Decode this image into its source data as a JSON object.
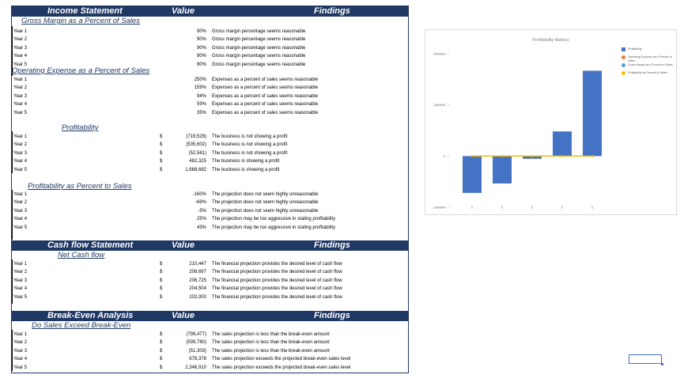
{
  "headers": {
    "income": {
      "c1": "Income Statement",
      "c2": "Value",
      "c3": "Findings"
    },
    "cashflow": {
      "c1": "Cash flow Statement",
      "c2": "Value",
      "c3": "Findings"
    },
    "breakeven": {
      "c1": "Break-Even Analysis",
      "c2": "Value",
      "c3": "Findings"
    }
  },
  "sections": {
    "gross_margin": {
      "title": "Gross Margin as a Percent of Sales",
      "rows": [
        {
          "label": "Year 1",
          "cur": "",
          "value": "90%",
          "finding": "Gross margin percentage seems reasonable"
        },
        {
          "label": "Year 2",
          "cur": "",
          "value": "90%",
          "finding": "Gross margin percentage seems reasonable"
        },
        {
          "label": "Year 3",
          "cur": "",
          "value": "90%",
          "finding": "Gross margin percentage seems reasonable"
        },
        {
          "label": "Year 4",
          "cur": "",
          "value": "90%",
          "finding": "Gross margin percentage seems reasonable"
        },
        {
          "label": "Year 5",
          "cur": "",
          "value": "90%",
          "finding": "Gross margin percentage seems reasonable"
        }
      ]
    },
    "opex": {
      "title": "Operating Expense as a Percent of Sales",
      "rows": [
        {
          "label": "Year 1",
          "cur": "",
          "value": "250%",
          "finding": "Expenses as a percent of sales seems reasonable"
        },
        {
          "label": "Year 2",
          "cur": "",
          "value": "159%",
          "finding": "Expenses as a percent of sales seems reasonable"
        },
        {
          "label": "Year 3",
          "cur": "",
          "value": "94%",
          "finding": "Expenses as a percent of sales seems reasonable"
        },
        {
          "label": "Year 4",
          "cur": "",
          "value": "59%",
          "finding": "Expenses as a percent of sales seems reasonable"
        },
        {
          "label": "Year 5",
          "cur": "",
          "value": "35%",
          "finding": "Expenses as a percent of sales seems reasonable"
        }
      ]
    },
    "profitability": {
      "title": "Profitability",
      "rows": [
        {
          "label": "Year 1",
          "cur": "$",
          "value": "(719,529)",
          "finding": "The business is not showing a profit"
        },
        {
          "label": "Year 2",
          "cur": "$",
          "value": "(535,602)",
          "finding": "The business is not showing a profit"
        },
        {
          "label": "Year 3",
          "cur": "$",
          "value": "(52,581)",
          "finding": "The business is not showing a profit"
        },
        {
          "label": "Year 4",
          "cur": "$",
          "value": "482,325",
          "finding": "The business is showing a profit"
        },
        {
          "label": "Year 5",
          "cur": "$",
          "value": "1,668,682",
          "finding": "The business is showing a profit"
        }
      ]
    },
    "profit_pct": {
      "title": "Profitability as Percent to Sales",
      "rows": [
        {
          "label": "Year 1",
          "cur": "",
          "value": "-160%",
          "finding": "The projection does not seem highly unreasonable"
        },
        {
          "label": "Year 2",
          "cur": "",
          "value": "-69%",
          "finding": "The projection does not seem highly unreasonable"
        },
        {
          "label": "Year 3",
          "cur": "",
          "value": "-5%",
          "finding": "The projection does not seem highly unreasonable"
        },
        {
          "label": "Year 4",
          "cur": "",
          "value": "25%",
          "finding": "The projection may be too aggressive in stating profitability"
        },
        {
          "label": "Year 5",
          "cur": "",
          "value": "43%",
          "finding": "The projection may be too aggressive in stating profitability"
        }
      ]
    },
    "net_cash": {
      "title": "Net Cash flow",
      "rows": [
        {
          "label": "Year 1",
          "cur": "$",
          "value": "210,447",
          "finding": "The financial projection provides the desired level of cash flow"
        },
        {
          "label": "Year 2",
          "cur": "$",
          "value": "208,697",
          "finding": "The financial projection provides the desired level of cash flow"
        },
        {
          "label": "Year 3",
          "cur": "$",
          "value": "206,725",
          "finding": "The financial projection provides the desired level of cash flow"
        },
        {
          "label": "Year 4",
          "cur": "$",
          "value": "204,504",
          "finding": "The financial projection provides the desired level of cash flow"
        },
        {
          "label": "Year 5",
          "cur": "$",
          "value": "202,000",
          "finding": "The financial projection provides the desired level of cash flow"
        }
      ]
    },
    "break_even": {
      "title": "Do Sales Exceed Break-Even",
      "rows": [
        {
          "label": "Year 1",
          "cur": "$",
          "value": "(799,477)",
          "finding": "The sales projection is less than the break-even amount"
        },
        {
          "label": "Year 2",
          "cur": "$",
          "value": "(599,780)",
          "finding": "The sales projection is less than the break-even amount"
        },
        {
          "label": "Year 3",
          "cur": "$",
          "value": "(51,303)",
          "finding": "The sales projection is less than the break-even amount"
        },
        {
          "label": "Year 4",
          "cur": "$",
          "value": "678,378",
          "finding": "The sales projection exceeds the projected break-even sales level"
        },
        {
          "label": "Year 5",
          "cur": "$",
          "value": "2,346,910",
          "finding": "The sales projection exceeds the projected break-even sales level"
        }
      ]
    }
  },
  "chart_data": {
    "type": "bar",
    "title": "Profitability Matrics",
    "categories": [
      "",
      "",
      "",
      "",
      ""
    ],
    "ylim": [
      -1000000,
      2000000
    ],
    "yticks": [
      2000000,
      1000000,
      0,
      -1000000
    ],
    "ytick_labels": [
      "2000000",
      "1000000",
      "0",
      "-1000000"
    ],
    "legend_position": "right",
    "series": [
      {
        "name": "Profitability",
        "type": "bar",
        "color": "#4472c4",
        "values": [
          -719529,
          -535602,
          -52581,
          482325,
          1668682
        ]
      },
      {
        "name": "Operating Expense as a Percent of Sales",
        "type": "line",
        "color": "#ed7d31",
        "values": [
          2.5,
          1.59,
          0.94,
          0.59,
          0.35
        ]
      },
      {
        "name": "Gross Margin as a Percent of Sales",
        "type": "line",
        "color": "#5b9bd5",
        "values": [
          0.9,
          0.9,
          0.9,
          0.9,
          0.9
        ]
      },
      {
        "name": "Profitability as Percent to Sales",
        "type": "line",
        "color": "#ffc000",
        "values": [
          -1.6,
          -0.69,
          -0.05,
          0.25,
          0.43
        ]
      }
    ]
  }
}
